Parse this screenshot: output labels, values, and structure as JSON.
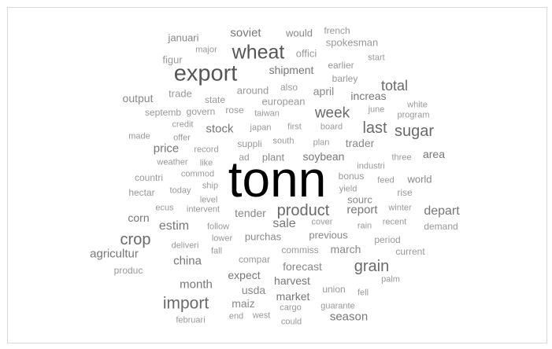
{
  "words": [
    {
      "text": "tonn",
      "weight": 5,
      "color": "#000000"
    },
    {
      "text": "export",
      "weight": 4,
      "color": "#555555"
    },
    {
      "text": "wheat",
      "weight": 4,
      "color": "#555555"
    },
    {
      "text": "week",
      "weight": 3,
      "color": "#6a6a6a"
    },
    {
      "text": "total",
      "weight": 3,
      "color": "#6a6a6a"
    },
    {
      "text": "last",
      "weight": 3,
      "color": "#6a6a6a"
    },
    {
      "text": "sugar",
      "weight": 3,
      "color": "#6a6a6a"
    },
    {
      "text": "product",
      "weight": 3,
      "color": "#6a6a6a"
    },
    {
      "text": "crop",
      "weight": 3,
      "color": "#6a6a6a"
    },
    {
      "text": "grain",
      "weight": 3,
      "color": "#6a6a6a"
    },
    {
      "text": "import",
      "weight": 3,
      "color": "#6a6a6a"
    },
    {
      "text": "soviet",
      "weight": 2,
      "color": "#777777"
    },
    {
      "text": "shipment",
      "weight": 2,
      "color": "#777777"
    },
    {
      "text": "increas",
      "weight": 2,
      "color": "#777777"
    },
    {
      "text": "price",
      "weight": 2,
      "color": "#777777"
    },
    {
      "text": "stock",
      "weight": 2,
      "color": "#777777"
    },
    {
      "text": "soybean",
      "weight": 2,
      "color": "#777777"
    },
    {
      "text": "trader",
      "weight": 2,
      "color": "#888888"
    },
    {
      "text": "area",
      "weight": 2,
      "color": "#777777"
    },
    {
      "text": "world",
      "weight": 2,
      "color": "#888888"
    },
    {
      "text": "depart",
      "weight": 2,
      "color": "#777777"
    },
    {
      "text": "report",
      "weight": 2,
      "color": "#777777"
    },
    {
      "text": "estim",
      "weight": 2,
      "color": "#777777"
    },
    {
      "text": "corn",
      "weight": 2,
      "color": "#777777"
    },
    {
      "text": "sale",
      "weight": 2,
      "color": "#777777"
    },
    {
      "text": "agricultur",
      "weight": 2,
      "color": "#777777"
    },
    {
      "text": "china",
      "weight": 2,
      "color": "#777777"
    },
    {
      "text": "month",
      "weight": 2,
      "color": "#777777"
    },
    {
      "text": "expect",
      "weight": 2,
      "color": "#777777"
    },
    {
      "text": "harvest",
      "weight": 2,
      "color": "#777777"
    },
    {
      "text": "market",
      "weight": 2,
      "color": "#777777"
    },
    {
      "text": "season",
      "weight": 2,
      "color": "#777777"
    },
    {
      "text": "march",
      "weight": 2,
      "color": "#888888"
    },
    {
      "text": "forecast",
      "weight": 2,
      "color": "#888888"
    },
    {
      "text": "output",
      "weight": 2,
      "color": "#888888"
    },
    {
      "text": "april",
      "weight": 2,
      "color": "#888888"
    },
    {
      "text": "tender",
      "weight": 2,
      "color": "#888888"
    },
    {
      "text": "purchas",
      "weight": 2,
      "color": "#888888"
    },
    {
      "text": "previous",
      "weight": 2,
      "color": "#888888"
    },
    {
      "text": "usda",
      "weight": 2,
      "color": "#888888"
    },
    {
      "text": "maiz",
      "weight": 2,
      "color": "#888888"
    },
    {
      "text": "sourc",
      "weight": 2,
      "color": "#888888"
    },
    {
      "text": "would",
      "weight": 1,
      "color": "#888888"
    },
    {
      "text": "french",
      "weight": 1,
      "color": "#999999"
    },
    {
      "text": "januari",
      "weight": 1,
      "color": "#888888"
    },
    {
      "text": "spokesman",
      "weight": 1,
      "color": "#999999"
    },
    {
      "text": "major",
      "weight": 1,
      "color": "#999999"
    },
    {
      "text": "offici",
      "weight": 1,
      "color": "#999999"
    },
    {
      "text": "start",
      "weight": 1,
      "color": "#999999"
    },
    {
      "text": "figur",
      "weight": 1,
      "color": "#999999"
    },
    {
      "text": "earlier",
      "weight": 1,
      "color": "#999999"
    },
    {
      "text": "barley",
      "weight": 1,
      "color": "#999999"
    },
    {
      "text": "also",
      "weight": 1,
      "color": "#999999"
    },
    {
      "text": "around",
      "weight": 1,
      "color": "#999999"
    },
    {
      "text": "trade",
      "weight": 1,
      "color": "#999999"
    },
    {
      "text": "state",
      "weight": 1,
      "color": "#999999"
    },
    {
      "text": "european",
      "weight": 1,
      "color": "#999999"
    },
    {
      "text": "white",
      "weight": 1,
      "color": "#999999"
    },
    {
      "text": "septemb",
      "weight": 1,
      "color": "#999999"
    },
    {
      "text": "govern",
      "weight": 1,
      "color": "#999999"
    },
    {
      "text": "rose",
      "weight": 1,
      "color": "#999999"
    },
    {
      "text": "taiwan",
      "weight": 1,
      "color": "#999999"
    },
    {
      "text": "june",
      "weight": 1,
      "color": "#999999"
    },
    {
      "text": "program",
      "weight": 1,
      "color": "#999999"
    },
    {
      "text": "credit",
      "weight": 1,
      "color": "#999999"
    },
    {
      "text": "japan",
      "weight": 1,
      "color": "#999999"
    },
    {
      "text": "first",
      "weight": 1,
      "color": "#999999"
    },
    {
      "text": "board",
      "weight": 1,
      "color": "#999999"
    },
    {
      "text": "made",
      "weight": 1,
      "color": "#999999"
    },
    {
      "text": "offer",
      "weight": 1,
      "color": "#999999"
    },
    {
      "text": "suppli",
      "weight": 1,
      "color": "#999999"
    },
    {
      "text": "south",
      "weight": 1,
      "color": "#999999"
    },
    {
      "text": "plan",
      "weight": 1,
      "color": "#999999"
    },
    {
      "text": "record",
      "weight": 1,
      "color": "#999999"
    },
    {
      "text": "three",
      "weight": 1,
      "color": "#999999"
    },
    {
      "text": "weather",
      "weight": 1,
      "color": "#999999"
    },
    {
      "text": "like",
      "weight": 1,
      "color": "#999999"
    },
    {
      "text": "ad",
      "weight": 1,
      "color": "#999999"
    },
    {
      "text": "plant",
      "weight": 1,
      "color": "#888888"
    },
    {
      "text": "industri",
      "weight": 1,
      "color": "#999999"
    },
    {
      "text": "countri",
      "weight": 1,
      "color": "#999999"
    },
    {
      "text": "commod",
      "weight": 1,
      "color": "#999999"
    },
    {
      "text": "bonus",
      "weight": 1,
      "color": "#999999"
    },
    {
      "text": "feed",
      "weight": 1,
      "color": "#999999"
    },
    {
      "text": "hectar",
      "weight": 1,
      "color": "#999999"
    },
    {
      "text": "today",
      "weight": 1,
      "color": "#999999"
    },
    {
      "text": "ship",
      "weight": 1,
      "color": "#999999"
    },
    {
      "text": "yield",
      "weight": 1,
      "color": "#999999"
    },
    {
      "text": "rise",
      "weight": 1,
      "color": "#999999"
    },
    {
      "text": "level",
      "weight": 1,
      "color": "#999999"
    },
    {
      "text": "ecus",
      "weight": 1,
      "color": "#999999"
    },
    {
      "text": "intervent",
      "weight": 1,
      "color": "#999999"
    },
    {
      "text": "winter",
      "weight": 1,
      "color": "#999999"
    },
    {
      "text": "cover",
      "weight": 1,
      "color": "#999999"
    },
    {
      "text": "recent",
      "weight": 1,
      "color": "#999999"
    },
    {
      "text": "follow",
      "weight": 1,
      "color": "#999999"
    },
    {
      "text": "rain",
      "weight": 1,
      "color": "#999999"
    },
    {
      "text": "demand",
      "weight": 1,
      "color": "#999999"
    },
    {
      "text": "lower",
      "weight": 1,
      "color": "#999999"
    },
    {
      "text": "period",
      "weight": 1,
      "color": "#999999"
    },
    {
      "text": "deliveri",
      "weight": 1,
      "color": "#999999"
    },
    {
      "text": "fall",
      "weight": 1,
      "color": "#999999"
    },
    {
      "text": "commiss",
      "weight": 1,
      "color": "#999999"
    },
    {
      "text": "current",
      "weight": 1,
      "color": "#999999"
    },
    {
      "text": "compar",
      "weight": 1,
      "color": "#999999"
    },
    {
      "text": "produc",
      "weight": 1,
      "color": "#999999"
    },
    {
      "text": "palm",
      "weight": 1,
      "color": "#999999"
    },
    {
      "text": "union",
      "weight": 1,
      "color": "#999999"
    },
    {
      "text": "fell",
      "weight": 1,
      "color": "#999999"
    },
    {
      "text": "cargo",
      "weight": 1,
      "color": "#999999"
    },
    {
      "text": "guarante",
      "weight": 1,
      "color": "#999999"
    },
    {
      "text": "end",
      "weight": 1,
      "color": "#999999"
    },
    {
      "text": "west",
      "weight": 1,
      "color": "#999999"
    },
    {
      "text": "februari",
      "weight": 1,
      "color": "#999999"
    },
    {
      "text": "could",
      "weight": 1,
      "color": "#999999"
    }
  ]
}
